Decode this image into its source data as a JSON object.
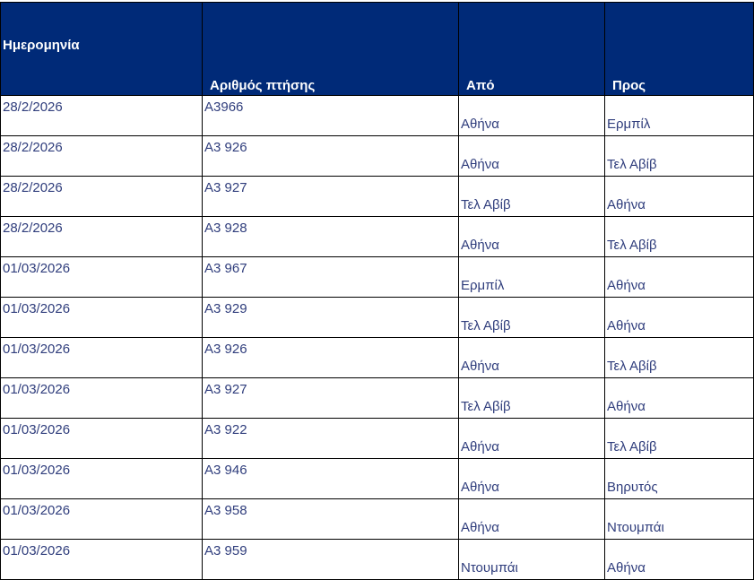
{
  "colors": {
    "header_bg": "#002a78",
    "header_text": "#ffffff",
    "cell_text": "#2f3d7c"
  },
  "headers": [
    "Ημερομηνία",
    "Αριθμός πτήσης",
    "Από",
    "Προς"
  ],
  "rows": [
    [
      "28/2/2026",
      "A3966",
      "Αθήνα",
      "Ερμπίλ"
    ],
    [
      "28/2/2026",
      "A3 926",
      "Αθήνα",
      "Τελ Αβίβ"
    ],
    [
      "28/2/2026",
      "A3 927",
      "Τελ Αβίβ",
      "Αθήνα"
    ],
    [
      "28/2/2026",
      "A3 928",
      "Αθήνα",
      "Τελ Αβίβ"
    ],
    [
      "01/03/2026",
      "A3 967",
      "Ερμπίλ",
      "Αθήνα"
    ],
    [
      "01/03/2026",
      "A3 929",
      "Τελ Αβίβ",
      "Αθήνα"
    ],
    [
      "01/03/2026",
      "A3 926",
      "Αθήνα",
      "Τελ Αβίβ"
    ],
    [
      "01/03/2026",
      "A3 927",
      "Τελ Αβίβ",
      "Αθήνα"
    ],
    [
      "01/03/2026",
      "A3 922",
      "Αθήνα",
      "Τελ Αβίβ"
    ],
    [
      "01/03/2026",
      "A3 946",
      "Αθήνα",
      "Βηρυτός"
    ],
    [
      "01/03/2026",
      "A3 958",
      "Αθήνα",
      "Ντουμπάι"
    ],
    [
      "01/03/2026",
      "A3 959",
      "Ντουμπάι",
      "Αθήνα"
    ]
  ]
}
